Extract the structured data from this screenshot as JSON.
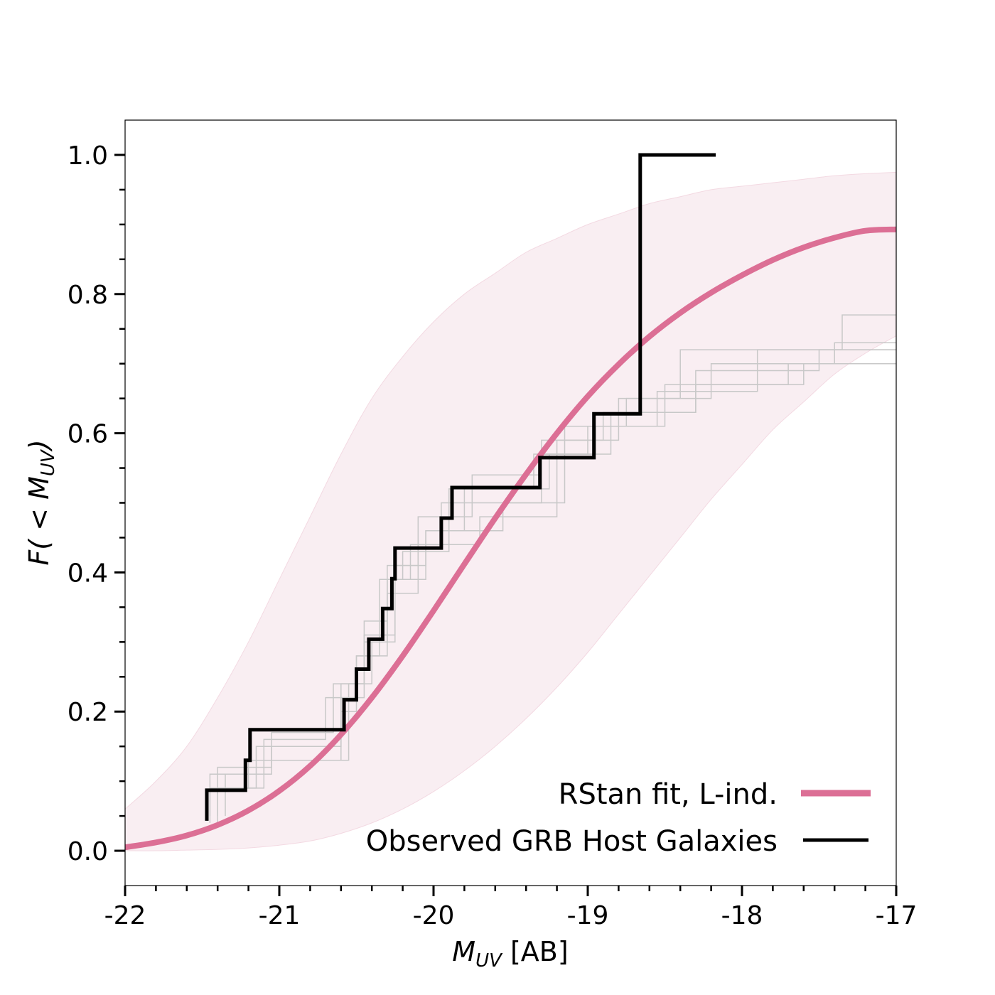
{
  "chart_data": {
    "type": "line",
    "title": "",
    "xlabel": "M_UV [AB]",
    "xlabel_parts": {
      "symbol": "M",
      "subscript": "UV",
      "suffix": " [AB]"
    },
    "ylabel": "F( < M_UV)",
    "ylabel_parts": {
      "prefix": "F( < ",
      "symbol": "M",
      "subscript": "UV",
      "suffix": ")"
    },
    "xlim": [
      -22,
      -17
    ],
    "ylim": [
      -0.05,
      1.05
    ],
    "xticks": [
      -22,
      -21,
      -20,
      -19,
      -18,
      -17
    ],
    "xtick_labels": [
      "-22",
      "-21",
      "-20",
      "-19",
      "-18",
      "-17"
    ],
    "yticks": [
      0.0,
      0.2,
      0.4,
      0.6,
      0.8,
      1.0
    ],
    "ytick_labels": [
      "0.0",
      "0.2",
      "0.4",
      "0.6",
      "0.8",
      "1.0"
    ],
    "x_minor_step": 0.2,
    "y_minor_step": 0.05,
    "grid": false,
    "legend_position": "bottom-right",
    "colors": {
      "fit": "#dc6f95",
      "band": "#f9eef2",
      "band_edge": "#f3d9e2",
      "observed": "#000000",
      "draws": "#c8c8c8"
    },
    "series": [
      {
        "name": "RStan fit, L-ind.",
        "kind": "line",
        "x": [
          -22.0,
          -21.8,
          -21.6,
          -21.4,
          -21.2,
          -21.0,
          -20.8,
          -20.6,
          -20.4,
          -20.2,
          -20.0,
          -19.8,
          -19.6,
          -19.4,
          -19.2,
          -19.0,
          -18.8,
          -18.6,
          -18.4,
          -18.2,
          -18.0,
          -17.8,
          -17.6,
          -17.4,
          -17.2,
          -17.0
        ],
        "y": [
          0.005,
          0.012,
          0.022,
          0.037,
          0.058,
          0.086,
          0.122,
          0.167,
          0.22,
          0.28,
          0.345,
          0.412,
          0.478,
          0.541,
          0.6,
          0.653,
          0.699,
          0.739,
          0.773,
          0.802,
          0.827,
          0.849,
          0.867,
          0.881,
          0.891,
          0.893
        ]
      },
      {
        "name": "Observed GRB Host Galaxies",
        "kind": "step",
        "x": [
          -21.47,
          -21.47,
          -21.22,
          -21.22,
          -21.19,
          -21.19,
          -20.58,
          -20.58,
          -20.5,
          -20.5,
          -20.42,
          -20.42,
          -20.33,
          -20.33,
          -20.27,
          -20.27,
          -20.25,
          -20.25,
          -19.95,
          -19.95,
          -19.88,
          -19.88,
          -19.31,
          -19.31,
          -18.96,
          -18.96,
          -18.66,
          -18.66,
          -18.17
        ],
        "y": [
          0.043,
          0.087,
          0.087,
          0.13,
          0.13,
          0.174,
          0.174,
          0.217,
          0.217,
          0.261,
          0.261,
          0.304,
          0.304,
          0.348,
          0.348,
          0.391,
          0.391,
          0.435,
          0.435,
          0.478,
          0.478,
          0.522,
          0.522,
          0.565,
          0.565,
          0.628,
          0.628,
          1.0,
          1.0
        ]
      }
    ],
    "credible_band": {
      "x": [
        -22.0,
        -21.8,
        -21.6,
        -21.4,
        -21.2,
        -21.0,
        -20.8,
        -20.6,
        -20.4,
        -20.2,
        -20.0,
        -19.8,
        -19.6,
        -19.4,
        -19.2,
        -19.0,
        -18.8,
        -18.6,
        -18.4,
        -18.2,
        -18.0,
        -17.8,
        -17.6,
        -17.4,
        -17.2,
        -17.0
      ],
      "upper": [
        0.06,
        0.1,
        0.15,
        0.22,
        0.3,
        0.39,
        0.48,
        0.57,
        0.65,
        0.71,
        0.76,
        0.8,
        0.83,
        0.86,
        0.88,
        0.9,
        0.915,
        0.93,
        0.94,
        0.95,
        0.955,
        0.96,
        0.965,
        0.97,
        0.973,
        0.975
      ],
      "lower": [
        0.0,
        0.0,
        0.001,
        0.002,
        0.004,
        0.008,
        0.014,
        0.025,
        0.04,
        0.06,
        0.085,
        0.115,
        0.15,
        0.19,
        0.235,
        0.285,
        0.34,
        0.395,
        0.45,
        0.505,
        0.555,
        0.605,
        0.645,
        0.685,
        0.715,
        0.74
      ]
    },
    "posterior_draws": [
      {
        "x": [
          -21.4,
          -21.4,
          -21.1,
          -21.1,
          -20.6,
          -20.6,
          -20.45,
          -20.45,
          -20.3,
          -20.3,
          -20.2,
          -20.2,
          -19.9,
          -19.9,
          -19.35,
          -19.35,
          -18.95,
          -18.95,
          -18.55,
          -18.55,
          -17.9,
          -17.9,
          -17.0
        ],
        "y": [
          0.04,
          0.09,
          0.09,
          0.13,
          0.13,
          0.22,
          0.22,
          0.3,
          0.3,
          0.39,
          0.39,
          0.43,
          0.43,
          0.52,
          0.52,
          0.57,
          0.57,
          0.61,
          0.61,
          0.66,
          0.66,
          0.72,
          0.72
        ]
      },
      {
        "x": [
          -21.45,
          -21.45,
          -21.2,
          -21.2,
          -20.55,
          -20.55,
          -20.4,
          -20.4,
          -20.25,
          -20.25,
          -20.05,
          -20.05,
          -19.8,
          -19.8,
          -19.25,
          -19.25,
          -18.85,
          -18.85,
          -18.3,
          -18.3,
          -17.6,
          -17.6,
          -17.0
        ],
        "y": [
          0.04,
          0.09,
          0.09,
          0.13,
          0.13,
          0.24,
          0.24,
          0.3,
          0.3,
          0.41,
          0.41,
          0.46,
          0.46,
          0.52,
          0.52,
          0.57,
          0.57,
          0.63,
          0.63,
          0.67,
          0.67,
          0.7,
          0.7
        ]
      },
      {
        "x": [
          -21.4,
          -21.4,
          -21.15,
          -21.15,
          -20.6,
          -20.6,
          -20.5,
          -20.5,
          -20.3,
          -20.3,
          -20.1,
          -20.1,
          -19.7,
          -19.7,
          -19.2,
          -19.2,
          -18.8,
          -18.8,
          -18.4,
          -18.4,
          -17.35,
          -17.35,
          -17.0
        ],
        "y": [
          0.05,
          0.09,
          0.09,
          0.15,
          0.15,
          0.2,
          0.2,
          0.28,
          0.28,
          0.37,
          0.37,
          0.44,
          0.44,
          0.48,
          0.48,
          0.59,
          0.59,
          0.65,
          0.65,
          0.72,
          0.72,
          0.77,
          0.77
        ]
      },
      {
        "x": [
          -21.45,
          -21.45,
          -21.1,
          -21.1,
          -20.7,
          -20.7,
          -20.5,
          -20.5,
          -20.35,
          -20.35,
          -20.15,
          -20.15,
          -19.95,
          -19.95,
          -19.3,
          -19.3,
          -19.0,
          -19.0,
          -18.5,
          -18.5,
          -17.7,
          -17.7,
          -17.0
        ],
        "y": [
          0.05,
          0.11,
          0.11,
          0.16,
          0.16,
          0.22,
          0.22,
          0.28,
          0.28,
          0.39,
          0.39,
          0.44,
          0.44,
          0.5,
          0.5,
          0.57,
          0.57,
          0.61,
          0.61,
          0.67,
          0.67,
          0.7,
          0.7
        ]
      },
      {
        "x": [
          -21.35,
          -21.35,
          -21.05,
          -21.05,
          -20.65,
          -20.65,
          -20.45,
          -20.45,
          -20.3,
          -20.3,
          -20.1,
          -20.1,
          -19.75,
          -19.75,
          -19.3,
          -19.3,
          -18.9,
          -18.9,
          -18.3,
          -18.3,
          -17.5,
          -17.5,
          -17.0
        ],
        "y": [
          0.05,
          0.11,
          0.11,
          0.17,
          0.17,
          0.24,
          0.24,
          0.33,
          0.33,
          0.41,
          0.41,
          0.48,
          0.48,
          0.54,
          0.54,
          0.59,
          0.59,
          0.63,
          0.63,
          0.69,
          0.69,
          0.72,
          0.72
        ]
      },
      {
        "x": [
          -21.4,
          -21.4,
          -21.05,
          -21.05,
          -20.6,
          -20.6,
          -20.45,
          -20.45,
          -20.25,
          -20.25,
          -20.05,
          -20.05,
          -19.55,
          -19.55,
          -19.15,
          -19.15,
          -18.75,
          -18.75,
          -18.2,
          -18.2,
          -17.4,
          -17.4,
          -17.0
        ],
        "y": [
          0.05,
          0.12,
          0.12,
          0.15,
          0.15,
          0.24,
          0.24,
          0.31,
          0.31,
          0.39,
          0.39,
          0.46,
          0.46,
          0.5,
          0.5,
          0.61,
          0.61,
          0.65,
          0.65,
          0.7,
          0.7,
          0.73,
          0.73
        ]
      }
    ]
  }
}
